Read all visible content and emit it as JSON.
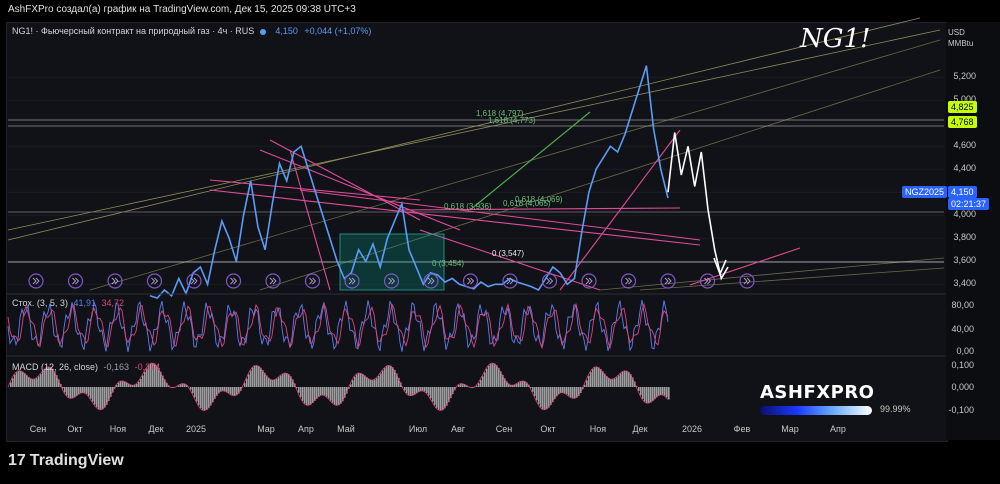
{
  "header": {
    "attribution": "AshFXPro создал(а) график на TradingView.com, Дек 15, 2025 09:38 UTC+3"
  },
  "legend": {
    "symbol": "NG1! · Фьючерсный контракт на природный газ · 4ч · RUS",
    "price": "4,150",
    "change": "+0,044 (+1,07%)"
  },
  "hand_title": "NG1!",
  "currency": {
    "unit": "USD",
    "sub": "MMBtu"
  },
  "price_axis": {
    "ticks": [
      "5,200",
      "5,000",
      "4,800",
      "4,600",
      "4,400",
      "4,200",
      "4,000",
      "3,800",
      "3,600",
      "3,400"
    ],
    "highlight_1": "4,825",
    "highlight_2": "4,768",
    "contract": "NGZ2025",
    "last": "4,150",
    "countdown": "02:21:37",
    "colors": {
      "highlight": "#c6ff00",
      "last": "#2962ff"
    }
  },
  "fib_labels": [
    "1,618 (4,797)",
    "1,618 (4,773)",
    "0,618 (4,069)",
    "0,618 (3,936)",
    "0,618 (4,065)",
    "0 (3,454)",
    "0 (3,547)"
  ],
  "stoch": {
    "label": "Стох. (3, 5, 3)",
    "k": "41,91",
    "d": "34,72",
    "ticks": [
      "80,00",
      "40,00",
      "0,00"
    ],
    "colors": {
      "k": "#5b7ff1",
      "d": "#e0457b"
    }
  },
  "macd": {
    "label": "MACD (12, 26, close)",
    "v1": "-0,163",
    "v2": "-0,374",
    "ticks": [
      "0,100",
      "0,000",
      "-0,100"
    ]
  },
  "x_axis": [
    "Сен",
    "Окт",
    "Ноя",
    "Дек",
    "2025",
    "Мар",
    "Апр",
    "Май",
    "Июл",
    "Авг",
    "Сен",
    "Окт",
    "Ноя",
    "Дек",
    "2026",
    "Фев",
    "Мар",
    "Апр"
  ],
  "brand": {
    "name": "ASHFXPRO",
    "pct": "99.99%"
  },
  "footer": {
    "logo": "TradingView",
    "mark": "17"
  },
  "chart_data": {
    "type": "line",
    "title": "NG1! · Фьючерсный контракт на природный газ · 4ч · RUS",
    "ylim": [
      3.35,
      5.35
    ],
    "y_ticks": [
      5.2,
      5.0,
      4.8,
      4.6,
      4.4,
      4.2,
      4.0,
      3.8,
      3.6,
      3.4
    ],
    "x_labels": [
      "Сен",
      "Окт",
      "Ноя",
      "Дек",
      "2025",
      "Мар",
      "Апр",
      "Май",
      "Июл",
      "Авг",
      "Сен",
      "Окт",
      "Ноя",
      "Дек",
      "2026",
      "Фев",
      "Мар",
      "Апр"
    ],
    "series": [
      {
        "values": [
          3.3,
          3.28,
          3.35,
          3.3,
          3.45,
          3.32,
          3.5,
          3.55,
          3.4,
          3.7,
          3.95,
          3.8,
          3.6,
          4.0,
          4.3,
          3.9,
          3.7,
          4.1,
          4.45,
          4.3,
          4.55,
          4.6,
          4.4,
          4.2,
          4.0,
          3.8,
          3.6,
          3.45,
          3.5,
          3.7,
          3.6,
          3.75,
          3.55,
          3.8,
          3.95,
          4.1,
          3.7,
          3.55,
          3.4,
          3.5,
          3.48,
          3.42,
          3.45,
          3.4,
          3.38,
          3.36,
          3.42,
          3.38,
          3.4,
          3.4,
          3.45,
          3.42,
          3.4,
          3.38,
          3.35,
          3.45,
          3.55,
          3.5,
          3.4,
          3.45,
          3.85,
          4.2,
          4.4,
          4.5,
          4.6,
          4.55,
          4.7,
          4.9,
          5.1,
          5.3,
          4.75,
          4.4,
          4.15
        ]
      }
    ],
    "projection": [
      4.2,
      4.72,
      4.35,
      4.6,
      4.25,
      4.55,
      4.05,
      3.7,
      3.45,
      3.55
    ]
  }
}
